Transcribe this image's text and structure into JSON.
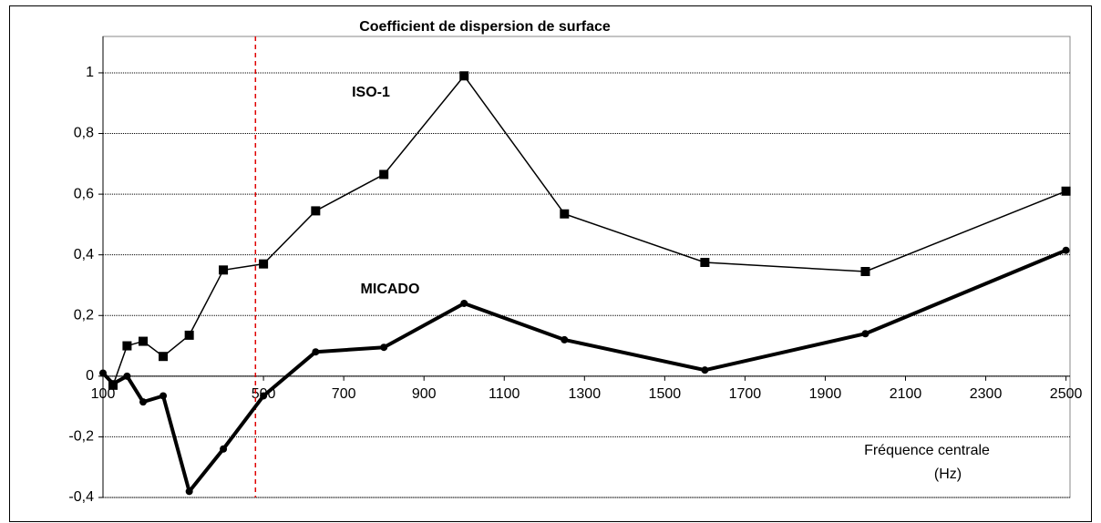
{
  "chart_data": {
    "type": "line",
    "title": "Coefficient de dispersion de surface",
    "x_label": [
      "Fréquence centrale",
      "(Hz)"
    ],
    "xlim": [
      100,
      2510
    ],
    "ylim": [
      -0.4,
      1.12
    ],
    "xticks": [
      100,
      500,
      700,
      900,
      1100,
      1300,
      1500,
      1700,
      1900,
      2100,
      2300,
      2500
    ],
    "yticks": [
      {
        "value": -0.4,
        "label": "-0,4"
      },
      {
        "value": -0.2,
        "label": "-0,2"
      },
      0,
      {
        "value": 0.2,
        "label": "0,2"
      },
      {
        "value": 0.4,
        "label": "0,4"
      },
      {
        "value": 0.6,
        "label": "0,6"
      },
      {
        "value": 0.8,
        "label": "0,8"
      },
      1
    ],
    "grid": true,
    "vline": {
      "x": 480,
      "color": "#e00000"
    },
    "series": [
      {
        "name": "ISO-1",
        "color": "#000000",
        "marker": "square",
        "width": 1.5,
        "x": [
          125,
          160,
          200,
          250,
          315,
          400,
          500,
          630,
          800,
          1000,
          1250,
          1600,
          2000,
          2500
        ],
        "values": [
          -0.03,
          0.1,
          0.115,
          0.065,
          0.135,
          0.35,
          0.37,
          0.545,
          0.665,
          0.99,
          0.535,
          0.375,
          0.345,
          0.61
        ]
      },
      {
        "name": "MICADO",
        "color": "#000000",
        "marker": "circle",
        "width": 4,
        "x": [
          100,
          125,
          160,
          200,
          250,
          315,
          400,
          500,
          630,
          800,
          1000,
          1250,
          1600,
          2000,
          2500
        ],
        "values": [
          0.01,
          -0.025,
          0.0,
          -0.085,
          -0.065,
          -0.38,
          -0.24,
          -0.065,
          0.08,
          0.095,
          0.24,
          0.12,
          0.02,
          0.14,
          0.415
        ]
      }
    ],
    "annotation_positions": null
  }
}
